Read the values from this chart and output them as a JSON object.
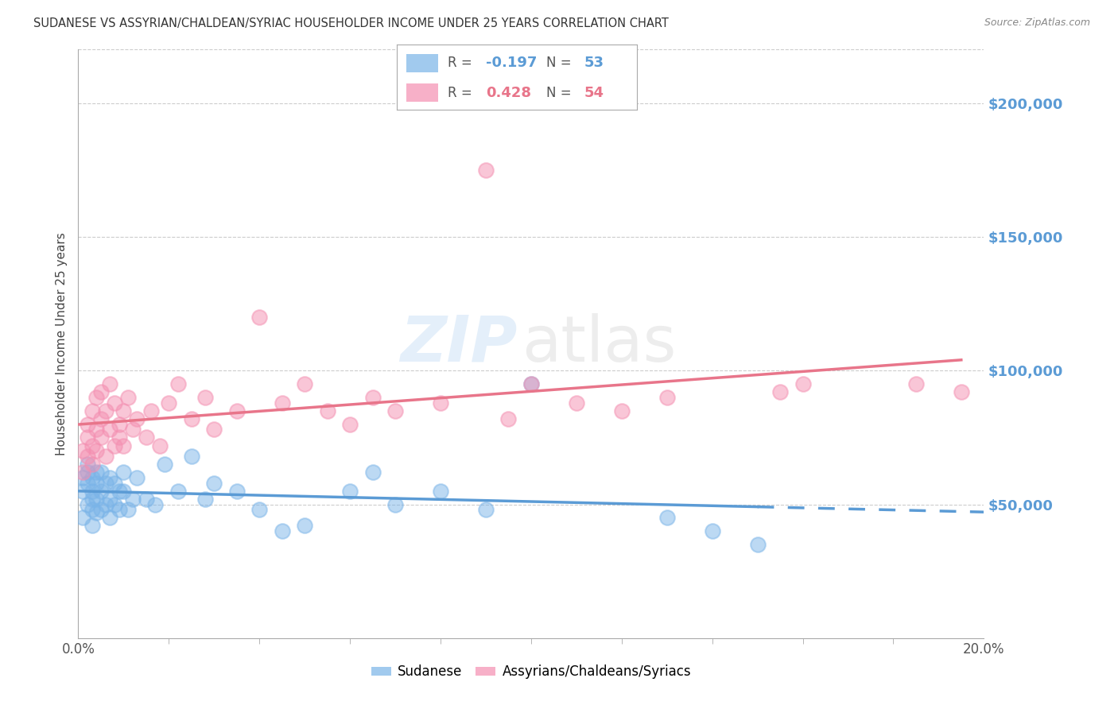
{
  "title": "SUDANESE VS ASSYRIAN/CHALDEAN/SYRIAC HOUSEHOLDER INCOME UNDER 25 YEARS CORRELATION CHART",
  "source": "Source: ZipAtlas.com",
  "ylabel": "Householder Income Under 25 years",
  "y_tick_labels": [
    "$50,000",
    "$100,000",
    "$150,000",
    "$200,000"
  ],
  "y_tick_values": [
    50000,
    100000,
    150000,
    200000
  ],
  "y_tick_color": "#5b9bd5",
  "blue_label": "Sudanese",
  "pink_label": "Assyrians/Chaldeans/Syriacs",
  "blue_R": -0.197,
  "blue_N": 53,
  "pink_R": 0.428,
  "pink_N": 54,
  "blue_color": "#7ab4e8",
  "pink_color": "#f48fb1",
  "blue_line_color": "#5b9bd5",
  "pink_line_color": "#e8758a",
  "background_color": "#ffffff",
  "x_min": 0.0,
  "x_max": 0.2,
  "y_min": 0,
  "y_max": 220000,
  "blue_x": [
    0.001,
    0.001,
    0.001,
    0.002,
    0.002,
    0.002,
    0.002,
    0.003,
    0.003,
    0.003,
    0.003,
    0.003,
    0.004,
    0.004,
    0.004,
    0.004,
    0.005,
    0.005,
    0.005,
    0.006,
    0.006,
    0.007,
    0.007,
    0.007,
    0.008,
    0.008,
    0.009,
    0.009,
    0.01,
    0.01,
    0.011,
    0.012,
    0.013,
    0.015,
    0.017,
    0.019,
    0.022,
    0.025,
    0.028,
    0.03,
    0.035,
    0.04,
    0.045,
    0.05,
    0.06,
    0.065,
    0.07,
    0.08,
    0.09,
    0.1,
    0.13,
    0.14,
    0.15
  ],
  "blue_y": [
    55000,
    60000,
    45000,
    62000,
    58000,
    50000,
    65000,
    52000,
    48000,
    55000,
    60000,
    42000,
    58000,
    52000,
    62000,
    47000,
    55000,
    48000,
    62000,
    50000,
    58000,
    52000,
    60000,
    45000,
    58000,
    50000,
    48000,
    55000,
    55000,
    62000,
    48000,
    52000,
    60000,
    52000,
    50000,
    65000,
    55000,
    68000,
    52000,
    58000,
    55000,
    48000,
    40000,
    42000,
    55000,
    62000,
    50000,
    55000,
    48000,
    95000,
    45000,
    40000,
    35000
  ],
  "pink_x": [
    0.001,
    0.001,
    0.002,
    0.002,
    0.002,
    0.003,
    0.003,
    0.003,
    0.004,
    0.004,
    0.004,
    0.005,
    0.005,
    0.005,
    0.006,
    0.006,
    0.007,
    0.007,
    0.008,
    0.008,
    0.009,
    0.009,
    0.01,
    0.01,
    0.011,
    0.012,
    0.013,
    0.015,
    0.016,
    0.018,
    0.02,
    0.022,
    0.025,
    0.028,
    0.03,
    0.035,
    0.04,
    0.045,
    0.05,
    0.055,
    0.06,
    0.065,
    0.07,
    0.08,
    0.09,
    0.095,
    0.1,
    0.11,
    0.12,
    0.13,
    0.155,
    0.16,
    0.185,
    0.195
  ],
  "pink_y": [
    62000,
    70000,
    68000,
    75000,
    80000,
    72000,
    85000,
    65000,
    78000,
    90000,
    70000,
    82000,
    75000,
    92000,
    85000,
    68000,
    78000,
    95000,
    72000,
    88000,
    80000,
    75000,
    85000,
    72000,
    90000,
    78000,
    82000,
    75000,
    85000,
    72000,
    88000,
    95000,
    82000,
    90000,
    78000,
    85000,
    120000,
    88000,
    95000,
    85000,
    80000,
    90000,
    85000,
    88000,
    175000,
    82000,
    95000,
    88000,
    85000,
    90000,
    92000,
    95000,
    95000,
    92000
  ]
}
